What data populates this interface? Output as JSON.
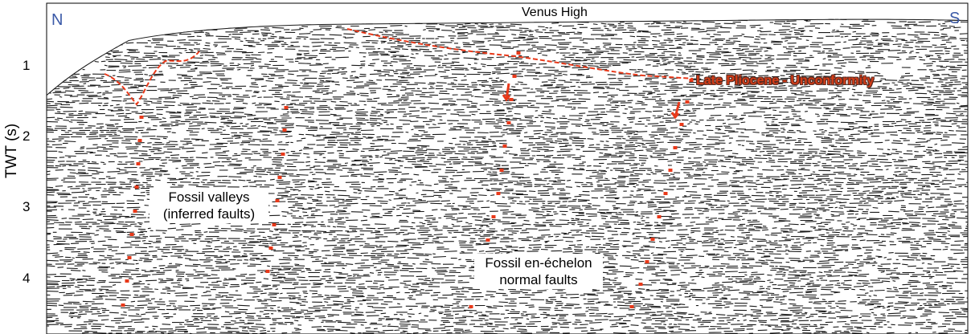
{
  "axis": {
    "ylabel": "TWT (s)",
    "ticks": [
      "1",
      "2",
      "3",
      "4"
    ]
  },
  "orientation": {
    "left": "N",
    "right": "S"
  },
  "labels": {
    "venus_high": "Venus High",
    "unconformity": "Late Pliocene - Unconformity",
    "fossil_valleys_line1": "Fossil valleys",
    "fossil_valleys_line2": "(inferred faults)",
    "en_echelon_line1": "Fossil en-échelon",
    "en_echelon_line2": "normal faults"
  },
  "colors": {
    "interpretation": "#e8391a",
    "compass": "#3b5aa8",
    "seismic_ink": "#1a1a1a"
  }
}
